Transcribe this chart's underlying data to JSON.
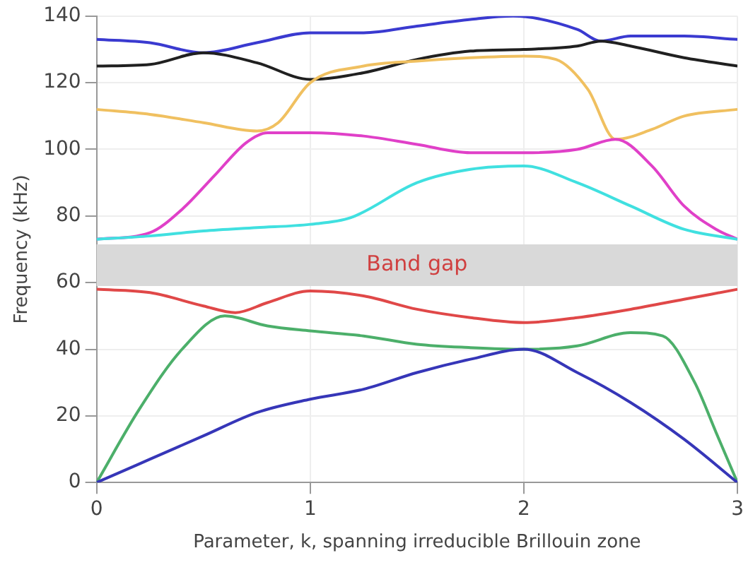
{
  "chart_data": {
    "type": "line",
    "xlabel": "Parameter, k, spanning irreducible Brillouin zone",
    "ylabel": "Frequency (kHz)",
    "xlim": [
      0,
      3
    ],
    "xticks": [
      0,
      1,
      2,
      3
    ],
    "ylim": [
      0,
      140
    ],
    "yticks": [
      0,
      20,
      40,
      60,
      80,
      100,
      120,
      140
    ],
    "grid": true,
    "legend": false,
    "bands": [
      {
        "axis": "y",
        "from": 59,
        "to": 71.5,
        "label": "Band gap",
        "color": "#d9d9d9"
      }
    ],
    "series": [
      {
        "color": "#3636b8",
        "x": [
          0,
          0.25,
          0.5,
          0.75,
          1,
          1.25,
          1.5,
          1.75,
          2,
          2.25,
          2.5,
          2.75,
          3
        ],
        "values": [
          0,
          7,
          14,
          21,
          25,
          28,
          33,
          37,
          40,
          33,
          24,
          13,
          0
        ]
      },
      {
        "color": "#4caf6a",
        "x": [
          0,
          0.2,
          0.4,
          0.6,
          0.8,
          1,
          1.25,
          1.5,
          1.75,
          2,
          2.25,
          2.5,
          2.65,
          2.8,
          2.9,
          3
        ],
        "values": [
          0,
          22,
          40,
          50,
          47,
          45.5,
          44,
          41.5,
          40.5,
          40,
          41,
          45,
          44,
          30,
          15,
          0
        ]
      },
      {
        "color": "#e04848",
        "x": [
          0,
          0.25,
          0.5,
          0.65,
          0.8,
          1,
          1.25,
          1.5,
          1.75,
          2,
          2.25,
          2.5,
          2.75,
          3
        ],
        "values": [
          58,
          57,
          53,
          51,
          54,
          57.5,
          56,
          52,
          49.5,
          48,
          49.5,
          52,
          55,
          58
        ]
      },
      {
        "color": "#40e0e0",
        "x": [
          0,
          0.25,
          0.5,
          0.75,
          1,
          1.19,
          1.5,
          1.75,
          2,
          2.25,
          2.5,
          2.75,
          3
        ],
        "values": [
          73,
          74,
          75.5,
          76.5,
          77.5,
          79.5,
          90,
          94,
          95,
          90,
          83,
          76,
          73
        ]
      },
      {
        "color": "#e040c8",
        "x": [
          0,
          0.25,
          0.4,
          0.55,
          0.7,
          0.8,
          1,
          1.25,
          1.5,
          1.75,
          2,
          2.25,
          2.43,
          2.6,
          2.75,
          2.9,
          3
        ],
        "values": [
          73,
          75,
          82,
          92,
          102,
          105,
          105,
          104,
          101.5,
          99,
          99,
          100,
          103,
          95,
          83,
          76,
          73
        ]
      },
      {
        "color": "#f0c060",
        "x": [
          0,
          0.25,
          0.5,
          0.75,
          0.85,
          1,
          1.25,
          1.5,
          1.75,
          2,
          2.15,
          2.3,
          2.43,
          2.6,
          2.75,
          3
        ],
        "values": [
          112,
          110.5,
          108,
          105.5,
          108,
          120,
          125,
          126.5,
          127.5,
          128,
          127,
          118,
          103,
          106,
          110,
          112
        ]
      },
      {
        "color": "#202020",
        "x": [
          0,
          0.25,
          0.5,
          0.75,
          1,
          1.25,
          1.5,
          1.75,
          2,
          2.25,
          2.36,
          2.5,
          2.75,
          3
        ],
        "values": [
          125,
          125.5,
          129,
          126,
          121,
          123,
          127,
          129.5,
          130,
          131,
          132.5,
          131,
          127.5,
          125
        ]
      },
      {
        "color": "#3a3ad0",
        "x": [
          0,
          0.25,
          0.5,
          0.75,
          1,
          1.25,
          1.5,
          1.75,
          1.95,
          2.25,
          2.36,
          2.5,
          2.75,
          3
        ],
        "values": [
          133,
          132,
          129,
          132,
          135,
          135,
          137,
          139,
          140,
          136,
          132.5,
          134,
          134,
          133
        ]
      }
    ]
  }
}
